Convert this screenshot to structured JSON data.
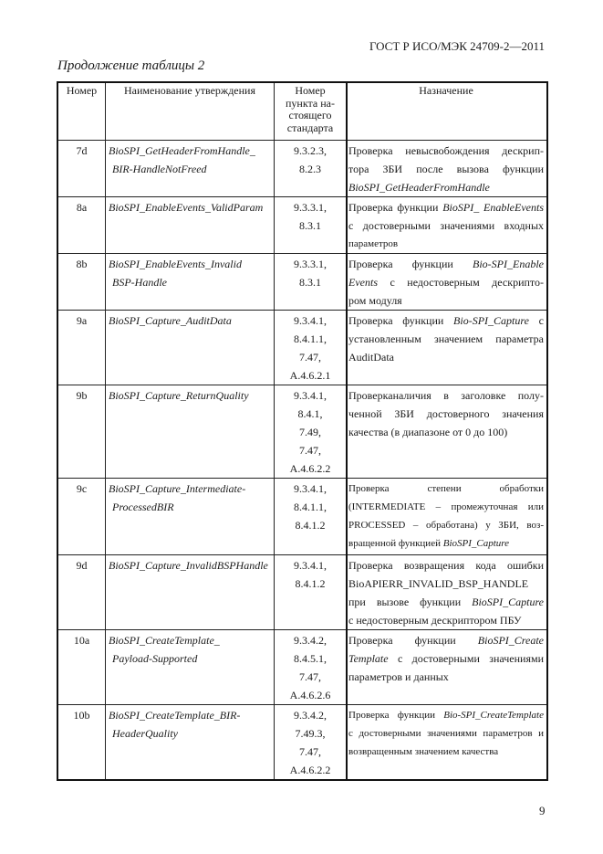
{
  "page_header": "ГОСТ Р ИСО/МЭК 24709-2—2011",
  "continuation": "Продолжение таблицы 2",
  "page_number": "9",
  "table": {
    "headers": [
      "Номер",
      "Наименование утверждения",
      "Номер пункта на-стоящего стандарта",
      "Назначение"
    ],
    "header_lines_col3": [
      "Номер",
      "пункта на-",
      "стоящего",
      "стандарта"
    ],
    "rows": [
      {
        "num": "7d",
        "name": [
          "BioSPI_GetHeaderFromHandle_",
          "BIR-HandleNotFreed"
        ],
        "clauses": [
          "9.3.2.3,",
          "8.2.3"
        ],
        "desc": [
          {
            "j": true,
            "s": [
              [
                "Проверка невысвобождения дескрип-",
                0
              ]
            ]
          },
          {
            "j": true,
            "s": [
              [
                "тора ЗБИ после вызова функции",
                0
              ]
            ]
          },
          {
            "s": [
              [
                "BioSPI_GetHeaderFromHandle",
                1
              ]
            ]
          }
        ],
        "h": 59
      },
      {
        "num": "8a",
        "name": [
          "BioSPI_EnableEvents_ValidParam"
        ],
        "clauses": [
          "9.3.3.1,",
          "8.3.1"
        ],
        "desc": [
          {
            "j": true,
            "s": [
              [
                "Проверка функции ",
                0
              ],
              [
                "BioSPI_ EnableEvents",
                1
              ]
            ]
          },
          {
            "j": true,
            "s": [
              [
                "с достоверными значениями входных",
                0
              ]
            ]
          },
          {
            "s": [
              [
                "параметров",
                0
              ]
            ],
            "small": true
          }
        ],
        "h": 60
      },
      {
        "num": "8b",
        "name": [
          "BioSPI_EnableEvents_Invalid",
          "BSP-Handle"
        ],
        "clauses": [
          "9.3.3.1,",
          "8.3.1"
        ],
        "desc": [
          {
            "j": true,
            "s": [
              [
                "Проверка функции ",
                0
              ],
              [
                "Bio-SPI_Enable",
                1
              ]
            ]
          },
          {
            "j": true,
            "s": [
              [
                "Events",
                1
              ],
              [
                " с недостоверным дескрипто-",
                0
              ]
            ]
          },
          {
            "s": [
              [
                "ром модуля",
                0
              ]
            ]
          }
        ],
        "h": 59
      },
      {
        "num": "9a",
        "name": [
          "BioSPI_Capture_AuditData"
        ],
        "clauses": [
          "9.3.4.1,",
          "8.4.1.1,",
          "7.47,",
          "A.4.6.2.1"
        ],
        "desc": [
          {
            "j": true,
            "s": [
              [
                "Проверка функции ",
                0
              ],
              [
                "Bio-SPI_Capture",
                1
              ],
              [
                " с",
                0
              ]
            ]
          },
          {
            "j": true,
            "s": [
              [
                "установленным значением параметра",
                0
              ]
            ]
          },
          {
            "s": [
              [
                "AuditData",
                0
              ]
            ]
          }
        ],
        "h": 79
      },
      {
        "num": "9b",
        "name": [
          "BioSPI_Capture_ReturnQuality"
        ],
        "clauses": [
          "9.3.4.1,",
          "8.4.1,",
          "7.49,",
          "7.47,",
          "A.4.6.2.2"
        ],
        "desc": [
          {
            "j": true,
            "s": [
              [
                "Проверканаличия в заголовке полу-",
                0
              ]
            ]
          },
          {
            "j": true,
            "s": [
              [
                "ченной ЗБИ достоверного значения",
                0
              ]
            ]
          },
          {
            "s": [
              [
                "качества (в диапазоне от 0 до 100)",
                0
              ]
            ]
          }
        ],
        "h": 100
      },
      {
        "num": "9c",
        "name": [
          "BioSPI_Capture_Intermediate-",
          "ProcessedBIR"
        ],
        "clauses": [
          "9.3.4.1,",
          "8.4.1.1,",
          "8.4.1.2"
        ],
        "desc": [
          {
            "j": true,
            "s": [
              [
                "Проверка степени обработки",
                0
              ]
            ],
            "small": true
          },
          {
            "j": true,
            "s": [
              [
                "(INTERMEDIATE – промежуточная или",
                0
              ]
            ],
            "small": true
          },
          {
            "j": true,
            "s": [
              [
                "PROCESSED – обработана) у ЗБИ, воз-",
                0
              ]
            ],
            "small": true
          },
          {
            "s": [
              [
                "вращенной функцией ",
                0
              ],
              [
                "BioSPI_Capture",
                1
              ]
            ],
            "small": true
          }
        ],
        "h": 84
      },
      {
        "num": "9d",
        "name": [
          "BioSPI_Capture_InvalidBSPHandle"
        ],
        "clauses": [
          "9.3.4.1,",
          "8.4.1.2"
        ],
        "desc": [
          {
            "j": true,
            "s": [
              [
                "Проверка возвращения кода ошибки",
                0
              ]
            ]
          },
          {
            "j": true,
            "s": [
              [
                "BioAPIERR_INVALID_BSP_HANDLE",
                0
              ]
            ]
          },
          {
            "j": true,
            "s": [
              [
                "при вызове функции ",
                0
              ],
              [
                "BioSPI_Capture",
                1
              ]
            ]
          },
          {
            "s": [
              [
                "с недостоверным дескриптором ПБУ",
                0
              ]
            ]
          }
        ],
        "h": 79
      },
      {
        "num": "10a",
        "name": [
          "BioSPI_CreateTemplate_",
          "Payload-Supported"
        ],
        "clauses": [
          "9.3.4.2,",
          "8.4.5.1,",
          "7.47,",
          "A.4.6.2.6"
        ],
        "desc": [
          {
            "j": true,
            "s": [
              [
                "Проверка функции ",
                0
              ],
              [
                "BioSPI_Create",
                1
              ]
            ]
          },
          {
            "j": true,
            "s": [
              [
                "Template",
                1
              ],
              [
                " с достоверными значениями",
                0
              ]
            ]
          },
          {
            "s": [
              [
                "параметров и данных",
                0
              ]
            ]
          }
        ],
        "h": 79
      },
      {
        "num": "10b",
        "name": [
          "BioSPI_CreateTemplate_BIR-",
          "HeaderQuality"
        ],
        "clauses": [
          "9.3.4.2,",
          "7.49.3,",
          "7.47,",
          "A.4.6.2.2"
        ],
        "desc": [
          {
            "j": true,
            "s": [
              [
                "Проверка функции ",
                0
              ],
              [
                "Bio-SPI_CreateTemplate",
                1
              ]
            ],
            "small": true
          },
          {
            "j": true,
            "s": [
              [
                "с достоверными значениями параметров и",
                0
              ]
            ],
            "small": true
          },
          {
            "s": [
              [
                "возвращенным значением качества",
                0
              ]
            ],
            "small": true
          }
        ],
        "h": 83
      }
    ]
  }
}
